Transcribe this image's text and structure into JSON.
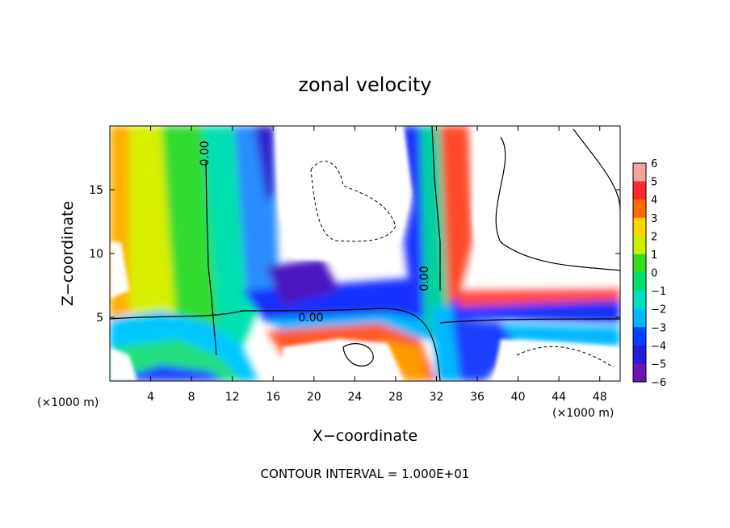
{
  "chart_data": {
    "type": "heatmap",
    "title": "zonal velocity",
    "xlabel": "X−coordinate",
    "ylabel": "Z−coordinate",
    "x_unit": "(×1000 m)",
    "z_unit": "(×1000 m)",
    "xlim": [
      0,
      50
    ],
    "ylim": [
      0,
      20
    ],
    "x_ticks": [
      4,
      8,
      12,
      16,
      20,
      24,
      28,
      32,
      36,
      40,
      44,
      48
    ],
    "y_ticks": [
      5,
      10,
      15
    ],
    "colorbar": {
      "levels": [
        "6",
        "5",
        "4",
        "3",
        "2",
        "1",
        "0",
        "−1",
        "−2",
        "−3",
        "−4",
        "−5",
        "−6"
      ],
      "range": [
        -6,
        6
      ],
      "colors": [
        "#f4a3a3",
        "#ff2a2a",
        "#ff6a00",
        "#ffd200",
        "#c8f000",
        "#34dc1e",
        "#00e070",
        "#00e0c0",
        "#00b8ff",
        "#0040ff",
        "#2020dc",
        "#6a14b4"
      ]
    },
    "contour_labels": [
      "0.00",
      "0.00",
      "0.00"
    ],
    "footnote": "CONTOUR INTERVAL = 1.000E+01"
  }
}
